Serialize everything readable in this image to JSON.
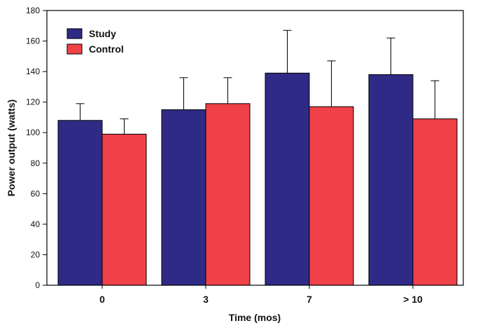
{
  "chart_data": {
    "type": "bar",
    "title": "",
    "xlabel": "Time (mos)",
    "ylabel": "Power output (watts)",
    "ylim": [
      0,
      180
    ],
    "yticks": [
      0,
      20,
      40,
      60,
      80,
      100,
      120,
      140,
      160,
      180
    ],
    "categories": [
      "0",
      "3",
      "7",
      "> 10"
    ],
    "series": [
      {
        "name": "Study",
        "color": "#2f2a86",
        "values": [
          108,
          115,
          139,
          138
        ],
        "errors": [
          11,
          21,
          28,
          24
        ]
      },
      {
        "name": "Control",
        "color": "#f04048",
        "values": [
          99,
          119,
          117,
          109
        ],
        "errors": [
          10,
          17,
          30,
          25
        ]
      }
    ],
    "error_bars": "upper",
    "legend": {
      "placement": "top-left",
      "entries": [
        "Study",
        "Control"
      ]
    },
    "grid": false
  }
}
